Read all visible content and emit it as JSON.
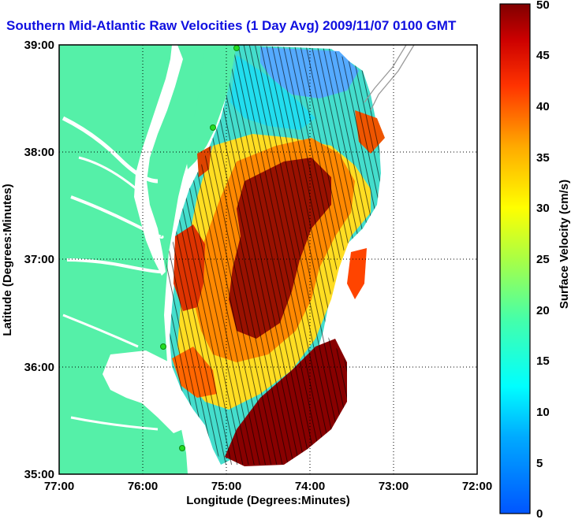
{
  "title": "Southern Mid-Atlantic Raw Velocities (1 Day Avg) 2009/11/07 0100 GMT",
  "xlabel": "Longitude (Degrees:Minutes)",
  "ylabel": "Latitude (Degrees:Minutes)",
  "x_ticks": [
    "77:00",
    "76:00",
    "75:00",
    "74:00",
    "73:00",
    "72:00"
  ],
  "y_ticks": [
    "39:00",
    "38:00",
    "37:00",
    "36:00",
    "35:00"
  ],
  "colorbar": {
    "label": "Surface Velocity (cm/s)",
    "ticks": [
      "0",
      "5",
      "10",
      "15",
      "20",
      "25",
      "30",
      "35",
      "40",
      "45",
      "50"
    ],
    "range": [
      0,
      50
    ],
    "colormap": "jet"
  },
  "map": {
    "lon_range": [
      -77,
      -72
    ],
    "lat_range": [
      35,
      39
    ],
    "grid": true,
    "land_color": "#55f0a8",
    "water_color": "#ffffff",
    "station_marker_color": "#22dd22"
  }
}
